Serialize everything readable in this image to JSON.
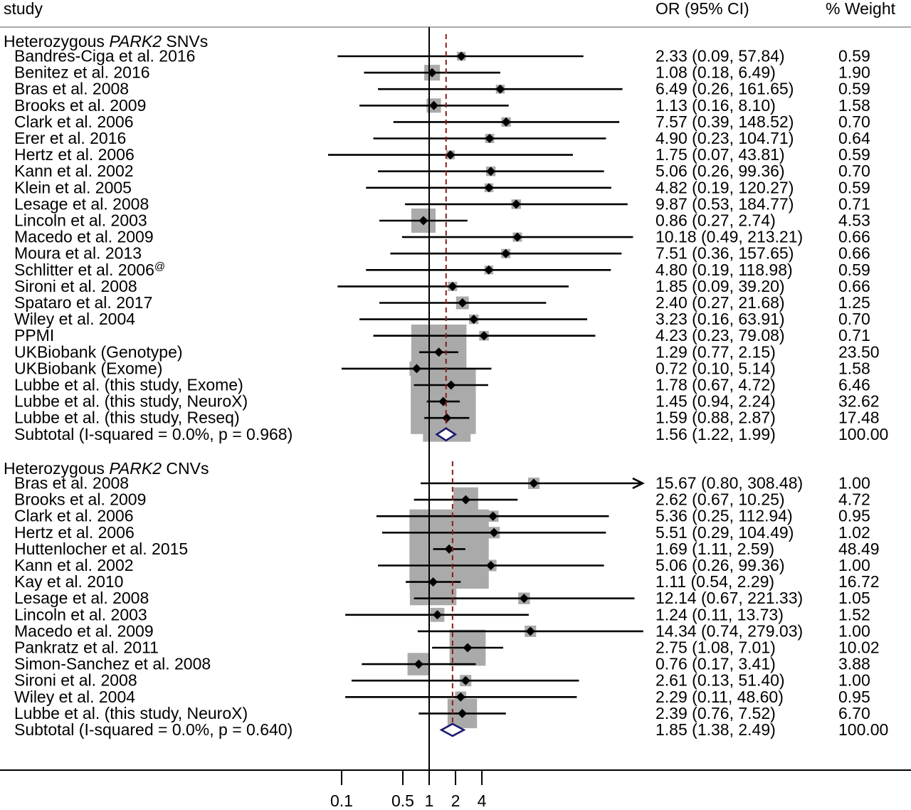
{
  "header": {
    "study": "study",
    "or_ci": "OR (95% CI)",
    "weight": "% Weight"
  },
  "chart_data": {
    "type": "forest",
    "x_scale": "log",
    "x_ticks": [
      0.1,
      0.5,
      1,
      2,
      4
    ],
    "x_tick_labels": [
      "0.1",
      "0.5",
      "1",
      "2",
      "4"
    ],
    "null_line": 1,
    "groups": [
      {
        "title_prefix": "Heterozygous ",
        "title_gene": "PARK2",
        "title_suffix": " SNVs",
        "studies": [
          {
            "label": "Bandres-Ciga et al. 2016",
            "or": 2.33,
            "lo": 0.09,
            "hi": 57.84,
            "or_text": "2.33 (0.09, 57.84)",
            "weight": "0.59"
          },
          {
            "label": "Benitez et al. 2016",
            "or": 1.08,
            "lo": 0.18,
            "hi": 6.49,
            "or_text": "1.08 (0.18, 6.49)",
            "weight": "1.90"
          },
          {
            "label": "Bras et al. 2008",
            "or": 6.49,
            "lo": 0.26,
            "hi": 161.65,
            "or_text": "6.49 (0.26, 161.65)",
            "weight": "0.59"
          },
          {
            "label": "Brooks et al. 2009",
            "or": 1.13,
            "lo": 0.16,
            "hi": 8.1,
            "or_text": "1.13 (0.16, 8.10)",
            "weight": "1.58"
          },
          {
            "label": "Clark et al. 2006",
            "or": 7.57,
            "lo": 0.39,
            "hi": 148.52,
            "or_text": "7.57 (0.39, 148.52)",
            "weight": "0.70"
          },
          {
            "label": "Erer et al. 2016",
            "or": 4.9,
            "lo": 0.23,
            "hi": 104.71,
            "or_text": "4.90 (0.23, 104.71)",
            "weight": "0.64"
          },
          {
            "label": "Hertz et al. 2006",
            "or": 1.75,
            "lo": 0.07,
            "hi": 43.81,
            "or_text": "1.75 (0.07, 43.81)",
            "weight": "0.59"
          },
          {
            "label": "Kann et al. 2002",
            "or": 5.06,
            "lo": 0.26,
            "hi": 99.36,
            "or_text": "5.06 (0.26, 99.36)",
            "weight": "0.70"
          },
          {
            "label": "Klein et al. 2005",
            "or": 4.82,
            "lo": 0.19,
            "hi": 120.27,
            "or_text": "4.82 (0.19, 120.27)",
            "weight": "0.59"
          },
          {
            "label": "Lesage et al. 2008",
            "or": 9.87,
            "lo": 0.53,
            "hi": 184.77,
            "or_text": "9.87 (0.53, 184.77)",
            "weight": "0.71"
          },
          {
            "label": "Lincoln et al. 2003",
            "or": 0.86,
            "lo": 0.27,
            "hi": 2.74,
            "or_text": "0.86 (0.27, 2.74)",
            "weight": "4.53"
          },
          {
            "label": "Macedo et al. 2009",
            "or": 10.18,
            "lo": 0.49,
            "hi": 213.21,
            "or_text": "10.18 (0.49, 213.21)",
            "weight": "0.66"
          },
          {
            "label": "Moura et al. 2013",
            "or": 7.51,
            "lo": 0.36,
            "hi": 157.65,
            "or_text": "7.51 (0.36, 157.65)",
            "weight": "0.66"
          },
          {
            "label": "Schlitter et al. 2006",
            "sup": "@",
            "or": 4.8,
            "lo": 0.19,
            "hi": 118.98,
            "or_text": "4.80 (0.19, 118.98)",
            "weight": "0.59"
          },
          {
            "label": "Sironi et al. 2008",
            "or": 1.85,
            "lo": 0.09,
            "hi": 39.2,
            "or_text": "1.85 (0.09, 39.20)",
            "weight": "0.66"
          },
          {
            "label": "Spataro et al. 2017",
            "or": 2.4,
            "lo": 0.27,
            "hi": 21.68,
            "or_text": "2.40 (0.27, 21.68)",
            "weight": "1.25"
          },
          {
            "label": "Wiley et al. 2004",
            "or": 3.23,
            "lo": 0.16,
            "hi": 63.91,
            "or_text": "3.23 (0.16, 63.91)",
            "weight": "0.70"
          },
          {
            "label": "PPMI",
            "or": 4.23,
            "lo": 0.23,
            "hi": 79.08,
            "or_text": "4.23 (0.23, 79.08)",
            "weight": "0.71"
          },
          {
            "label": "UKBiobank (Genotype)",
            "or": 1.29,
            "lo": 0.77,
            "hi": 2.15,
            "or_text": "1.29 (0.77, 2.15)",
            "weight": "23.50"
          },
          {
            "label": "UKBiobank (Exome)",
            "or": 0.72,
            "lo": 0.1,
            "hi": 5.14,
            "or_text": "0.72 (0.10, 5.14)",
            "weight": "1.58"
          },
          {
            "label": "Lubbe et al. (this study, Exome)",
            "or": 1.78,
            "lo": 0.67,
            "hi": 4.72,
            "or_text": "1.78 (0.67, 4.72)",
            "weight": "6.46"
          },
          {
            "label": "Lubbe et al. (this study, NeuroX)",
            "or": 1.45,
            "lo": 0.94,
            "hi": 2.24,
            "or_text": "1.45 (0.94, 2.24)",
            "weight": "32.62"
          },
          {
            "label": "Lubbe et al. (this study, Reseq)",
            "or": 1.59,
            "lo": 0.88,
            "hi": 2.87,
            "or_text": "1.59 (0.88, 2.87)",
            "weight": "17.48"
          }
        ],
        "subtotal": {
          "label": "Subtotal  (I-squared = 0.0%, p = 0.968)",
          "or": 1.56,
          "lo": 1.22,
          "hi": 1.99,
          "or_text": "1.56 (1.22, 1.99)",
          "weight": "100.00"
        }
      },
      {
        "title_prefix": "Heterozygous ",
        "title_gene": "PARK2",
        "title_suffix": " CNVs",
        "studies": [
          {
            "label": "Bras et al. 2008",
            "or": 15.67,
            "lo": 0.8,
            "hi": 308.48,
            "or_text": "15.67 (0.80, 308.48)",
            "weight": "1.00",
            "arrow": true
          },
          {
            "label": "Brooks et al. 2009",
            "or": 2.62,
            "lo": 0.67,
            "hi": 10.25,
            "or_text": "2.62 (0.67, 10.25)",
            "weight": "4.72"
          },
          {
            "label": "Clark et al. 2006",
            "or": 5.36,
            "lo": 0.25,
            "hi": 112.94,
            "or_text": "5.36 (0.25, 112.94)",
            "weight": "0.95"
          },
          {
            "label": "Hertz et al. 2006",
            "or": 5.51,
            "lo": 0.29,
            "hi": 104.49,
            "or_text": "5.51 (0.29, 104.49)",
            "weight": "1.02"
          },
          {
            "label": "Huttenlocher et al. 2015",
            "or": 1.69,
            "lo": 1.11,
            "hi": 2.59,
            "or_text": "1.69 (1.11, 2.59)",
            "weight": "48.49"
          },
          {
            "label": "Kann et al. 2002",
            "or": 5.06,
            "lo": 0.26,
            "hi": 99.36,
            "or_text": "5.06 (0.26, 99.36)",
            "weight": "1.00"
          },
          {
            "label": "Kay et al. 2010",
            "or": 1.11,
            "lo": 0.54,
            "hi": 2.29,
            "or_text": "1.11 (0.54, 2.29)",
            "weight": "16.72"
          },
          {
            "label": "Lesage et al. 2008",
            "or": 12.14,
            "lo": 0.67,
            "hi": 221.33,
            "or_text": "12.14 (0.67, 221.33)",
            "weight": "1.05"
          },
          {
            "label": "Lincoln et al. 2003",
            "or": 1.24,
            "lo": 0.11,
            "hi": 13.73,
            "or_text": "1.24 (0.11, 13.73)",
            "weight": "1.52"
          },
          {
            "label": "Macedo et al. 2009",
            "or": 14.34,
            "lo": 0.74,
            "hi": 279.03,
            "or_text": "14.34 (0.74, 279.03)",
            "weight": "1.00"
          },
          {
            "label": "Pankratz et al. 2011",
            "or": 2.75,
            "lo": 1.08,
            "hi": 7.01,
            "or_text": "2.75 (1.08, 7.01)",
            "weight": "10.02"
          },
          {
            "label": "Simon-Sanchez et al. 2008",
            "or": 0.76,
            "lo": 0.17,
            "hi": 3.41,
            "or_text": "0.76 (0.17, 3.41)",
            "weight": "3.88"
          },
          {
            "label": "Sironi et al. 2008",
            "or": 2.61,
            "lo": 0.13,
            "hi": 51.4,
            "or_text": "2.61 (0.13, 51.40)",
            "weight": "1.00"
          },
          {
            "label": "Wiley et al. 2004",
            "or": 2.29,
            "lo": 0.11,
            "hi": 48.6,
            "or_text": "2.29 (0.11, 48.60)",
            "weight": "0.95"
          },
          {
            "label": "Lubbe et al. (this study, NeuroX)",
            "or": 2.39,
            "lo": 0.76,
            "hi": 7.52,
            "or_text": "2.39 (0.76, 7.52)",
            "weight": "6.70"
          }
        ],
        "subtotal": {
          "label": "Subtotal  (I-squared = 0.0%, p = 0.640)",
          "or": 1.85,
          "lo": 1.38,
          "hi": 2.49,
          "or_text": "1.85 (1.38, 2.49)",
          "weight": "100.00"
        }
      }
    ],
    "colors": {
      "box": "#aaaaaa",
      "diamond": "#1a1a70",
      "pooled_line": "#8b1a1a",
      "line": "#000000"
    }
  }
}
